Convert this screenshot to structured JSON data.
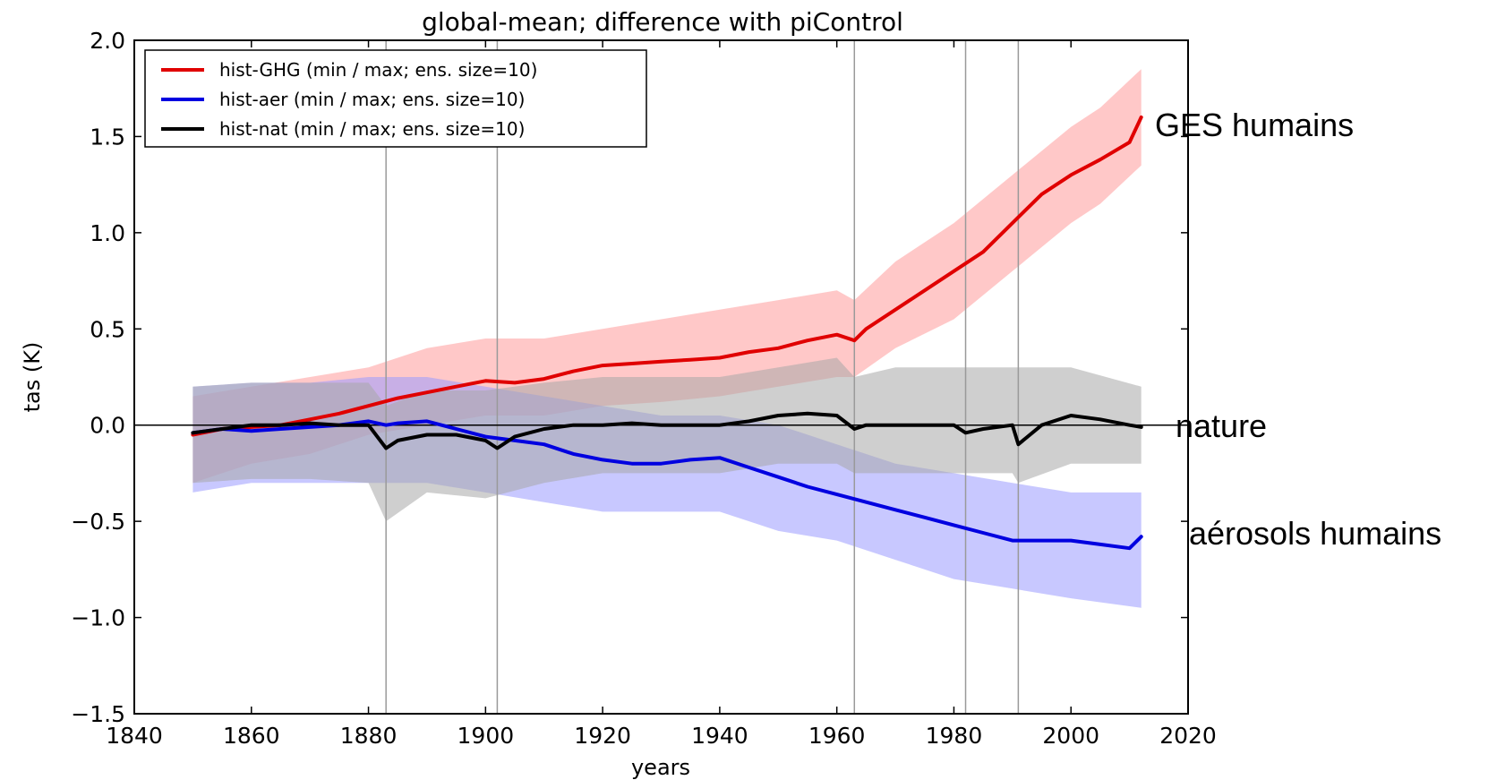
{
  "chart_data": {
    "type": "line",
    "title": "global-mean; difference with piControl",
    "xlabel": "years",
    "ylabel": "tas (K)",
    "xlim": [
      1840,
      2020
    ],
    "ylim": [
      -1.5,
      2.0
    ],
    "xticks": [
      "1840",
      "1860",
      "1880",
      "1900",
      "1920",
      "1940",
      "1960",
      "1980",
      "2000",
      "2020"
    ],
    "yticks": [
      "2.0",
      "1.5",
      "1.0",
      "0.5",
      "0.0",
      "−0.5",
      "−1.0",
      "−1.5"
    ],
    "grid": false,
    "legend_position": "top-left",
    "reference_line_y": 0.0,
    "vertical_lines_x": [
      1883,
      1902,
      1963,
      1982,
      1991
    ],
    "series": [
      {
        "name": "hist-GHG (min / max; ens. size=10)",
        "color": "#e00000",
        "band_color": "#ff9a9a",
        "annotation": "GES humains",
        "mean_points": [
          [
            1850,
            -0.05
          ],
          [
            1855,
            -0.02
          ],
          [
            1860,
            -0.01
          ],
          [
            1865,
            0.0
          ],
          [
            1870,
            0.03
          ],
          [
            1875,
            0.06
          ],
          [
            1880,
            0.1
          ],
          [
            1885,
            0.14
          ],
          [
            1890,
            0.17
          ],
          [
            1895,
            0.2
          ],
          [
            1900,
            0.23
          ],
          [
            1905,
            0.22
          ],
          [
            1910,
            0.24
          ],
          [
            1915,
            0.28
          ],
          [
            1920,
            0.31
          ],
          [
            1925,
            0.32
          ],
          [
            1930,
            0.33
          ],
          [
            1935,
            0.34
          ],
          [
            1940,
            0.35
          ],
          [
            1945,
            0.38
          ],
          [
            1950,
            0.4
          ],
          [
            1955,
            0.44
          ],
          [
            1960,
            0.47
          ],
          [
            1963,
            0.44
          ],
          [
            1965,
            0.5
          ],
          [
            1970,
            0.6
          ],
          [
            1975,
            0.7
          ],
          [
            1980,
            0.8
          ],
          [
            1985,
            0.9
          ],
          [
            1990,
            1.05
          ],
          [
            1995,
            1.2
          ],
          [
            2000,
            1.3
          ],
          [
            2005,
            1.38
          ],
          [
            2010,
            1.47
          ],
          [
            2012,
            1.6
          ]
        ],
        "min_points": [
          [
            1850,
            -0.3
          ],
          [
            1860,
            -0.2
          ],
          [
            1870,
            -0.15
          ],
          [
            1880,
            -0.05
          ],
          [
            1890,
            0.0
          ],
          [
            1900,
            0.05
          ],
          [
            1910,
            0.05
          ],
          [
            1920,
            0.1
          ],
          [
            1930,
            0.12
          ],
          [
            1940,
            0.15
          ],
          [
            1950,
            0.2
          ],
          [
            1960,
            0.25
          ],
          [
            1963,
            0.25
          ],
          [
            1970,
            0.4
          ],
          [
            1980,
            0.55
          ],
          [
            1990,
            0.8
          ],
          [
            2000,
            1.05
          ],
          [
            2005,
            1.15
          ],
          [
            2012,
            1.35
          ]
        ],
        "max_points": [
          [
            1850,
            0.15
          ],
          [
            1860,
            0.2
          ],
          [
            1870,
            0.25
          ],
          [
            1880,
            0.3
          ],
          [
            1890,
            0.4
          ],
          [
            1900,
            0.45
          ],
          [
            1910,
            0.45
          ],
          [
            1920,
            0.5
          ],
          [
            1930,
            0.55
          ],
          [
            1940,
            0.6
          ],
          [
            1950,
            0.65
          ],
          [
            1960,
            0.7
          ],
          [
            1963,
            0.65
          ],
          [
            1970,
            0.85
          ],
          [
            1980,
            1.05
          ],
          [
            1990,
            1.3
          ],
          [
            2000,
            1.55
          ],
          [
            2005,
            1.65
          ],
          [
            2012,
            1.85
          ]
        ]
      },
      {
        "name": "hist-aer (min / max; ens. size=10)",
        "color": "#0000e0",
        "band_color": "#9a9aff",
        "annotation": "aérosols humains",
        "mean_points": [
          [
            1850,
            -0.04
          ],
          [
            1855,
            -0.02
          ],
          [
            1860,
            -0.03
          ],
          [
            1865,
            -0.02
          ],
          [
            1870,
            -0.01
          ],
          [
            1875,
            0.0
          ],
          [
            1880,
            0.02
          ],
          [
            1883,
            0.0
          ],
          [
            1885,
            0.01
          ],
          [
            1890,
            0.02
          ],
          [
            1895,
            -0.02
          ],
          [
            1900,
            -0.06
          ],
          [
            1905,
            -0.08
          ],
          [
            1910,
            -0.1
          ],
          [
            1915,
            -0.15
          ],
          [
            1920,
            -0.18
          ],
          [
            1925,
            -0.2
          ],
          [
            1930,
            -0.2
          ],
          [
            1935,
            -0.18
          ],
          [
            1940,
            -0.17
          ],
          [
            1945,
            -0.22
          ],
          [
            1950,
            -0.27
          ],
          [
            1955,
            -0.32
          ],
          [
            1960,
            -0.36
          ],
          [
            1965,
            -0.4
          ],
          [
            1970,
            -0.44
          ],
          [
            1975,
            -0.48
          ],
          [
            1980,
            -0.52
          ],
          [
            1985,
            -0.56
          ],
          [
            1990,
            -0.6
          ],
          [
            1995,
            -0.6
          ],
          [
            2000,
            -0.6
          ],
          [
            2005,
            -0.62
          ],
          [
            2010,
            -0.64
          ],
          [
            2012,
            -0.58
          ]
        ],
        "min_points": [
          [
            1850,
            -0.35
          ],
          [
            1860,
            -0.3
          ],
          [
            1870,
            -0.3
          ],
          [
            1880,
            -0.3
          ],
          [
            1890,
            -0.3
          ],
          [
            1900,
            -0.35
          ],
          [
            1910,
            -0.4
          ],
          [
            1920,
            -0.45
          ],
          [
            1930,
            -0.45
          ],
          [
            1940,
            -0.45
          ],
          [
            1950,
            -0.55
          ],
          [
            1960,
            -0.6
          ],
          [
            1970,
            -0.7
          ],
          [
            1980,
            -0.8
          ],
          [
            1990,
            -0.85
          ],
          [
            2000,
            -0.9
          ],
          [
            2012,
            -0.95
          ]
        ],
        "max_points": [
          [
            1850,
            0.2
          ],
          [
            1860,
            0.22
          ],
          [
            1870,
            0.22
          ],
          [
            1880,
            0.25
          ],
          [
            1890,
            0.25
          ],
          [
            1900,
            0.2
          ],
          [
            1910,
            0.15
          ],
          [
            1920,
            0.1
          ],
          [
            1930,
            0.05
          ],
          [
            1940,
            0.05
          ],
          [
            1950,
            0.0
          ],
          [
            1960,
            -0.1
          ],
          [
            1970,
            -0.2
          ],
          [
            1980,
            -0.25
          ],
          [
            1990,
            -0.3
          ],
          [
            2000,
            -0.35
          ],
          [
            2012,
            -0.35
          ]
        ]
      },
      {
        "name": "hist-nat (min / max; ens. size=10)",
        "color": "#000000",
        "band_color": "#a8a8a8",
        "annotation": "nature",
        "mean_points": [
          [
            1850,
            -0.04
          ],
          [
            1855,
            -0.02
          ],
          [
            1860,
            0.0
          ],
          [
            1865,
            0.0
          ],
          [
            1870,
            0.01
          ],
          [
            1875,
            0.0
          ],
          [
            1880,
            0.0
          ],
          [
            1883,
            -0.12
          ],
          [
            1885,
            -0.08
          ],
          [
            1890,
            -0.05
          ],
          [
            1895,
            -0.05
          ],
          [
            1900,
            -0.08
          ],
          [
            1902,
            -0.12
          ],
          [
            1905,
            -0.06
          ],
          [
            1910,
            -0.02
          ],
          [
            1915,
            0.0
          ],
          [
            1920,
            0.0
          ],
          [
            1925,
            0.01
          ],
          [
            1930,
            0.0
          ],
          [
            1935,
            0.0
          ],
          [
            1940,
            0.0
          ],
          [
            1945,
            0.02
          ],
          [
            1950,
            0.05
          ],
          [
            1955,
            0.06
          ],
          [
            1960,
            0.05
          ],
          [
            1963,
            -0.02
          ],
          [
            1965,
            0.0
          ],
          [
            1970,
            0.0
          ],
          [
            1975,
            0.0
          ],
          [
            1980,
            0.0
          ],
          [
            1982,
            -0.04
          ],
          [
            1985,
            -0.02
          ],
          [
            1990,
            0.0
          ],
          [
            1991,
            -0.1
          ],
          [
            1995,
            0.0
          ],
          [
            2000,
            0.05
          ],
          [
            2005,
            0.03
          ],
          [
            2010,
            0.0
          ],
          [
            2012,
            -0.01
          ]
        ],
        "min_points": [
          [
            1850,
            -0.3
          ],
          [
            1860,
            -0.28
          ],
          [
            1870,
            -0.28
          ],
          [
            1880,
            -0.3
          ],
          [
            1883,
            -0.5
          ],
          [
            1890,
            -0.35
          ],
          [
            1900,
            -0.38
          ],
          [
            1910,
            -0.3
          ],
          [
            1920,
            -0.25
          ],
          [
            1930,
            -0.25
          ],
          [
            1940,
            -0.25
          ],
          [
            1950,
            -0.2
          ],
          [
            1960,
            -0.2
          ],
          [
            1963,
            -0.25
          ],
          [
            1970,
            -0.25
          ],
          [
            1980,
            -0.25
          ],
          [
            1990,
            -0.25
          ],
          [
            1991,
            -0.3
          ],
          [
            2000,
            -0.2
          ],
          [
            2012,
            -0.2
          ]
        ],
        "max_points": [
          [
            1850,
            0.2
          ],
          [
            1860,
            0.22
          ],
          [
            1870,
            0.22
          ],
          [
            1880,
            0.22
          ],
          [
            1883,
            0.1
          ],
          [
            1890,
            0.18
          ],
          [
            1900,
            0.18
          ],
          [
            1910,
            0.22
          ],
          [
            1920,
            0.25
          ],
          [
            1930,
            0.25
          ],
          [
            1940,
            0.25
          ],
          [
            1950,
            0.3
          ],
          [
            1960,
            0.35
          ],
          [
            1963,
            0.25
          ],
          [
            1970,
            0.3
          ],
          [
            1980,
            0.3
          ],
          [
            1990,
            0.3
          ],
          [
            2000,
            0.3
          ],
          [
            2012,
            0.2
          ]
        ]
      }
    ]
  }
}
